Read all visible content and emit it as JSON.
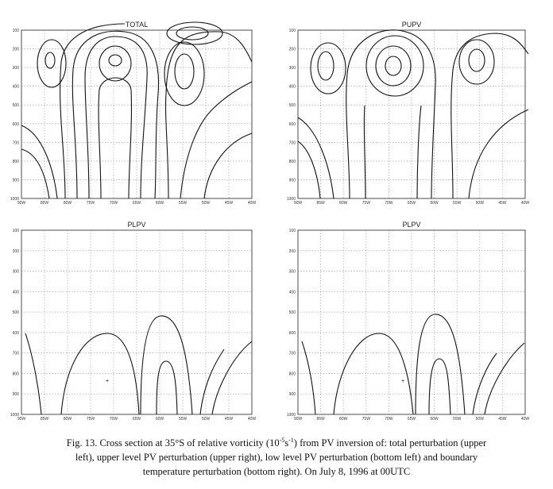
{
  "panels": [
    {
      "title": "TOTAL"
    },
    {
      "title": "PUPV"
    },
    {
      "title": "PLPV"
    },
    {
      "title": "PLPV"
    }
  ],
  "axes": {
    "x_labels": [
      "90W",
      "85W",
      "80W",
      "75W",
      "70W",
      "65W",
      "60W",
      "55W",
      "50W",
      "45W",
      "40W"
    ],
    "y_labels": [
      "100",
      "200",
      "300",
      "400",
      "500",
      "600",
      "700",
      "800",
      "900",
      "1000"
    ]
  },
  "caption": {
    "line1_start": "Fig. 13. Cross section at 35°S of relative vorticity (10",
    "sup1": "-5",
    "mid": "s",
    "sup2": "-1",
    "line1_end": ") from PV inversion of: total perturbation (upper",
    "line2": "left), upper level PV perturbation (upper right), low level PV perturbation (bottom left) and boundary",
    "line3": "temperature perturbation (bottom right). On July 8, 1996 at 00UTC"
  }
}
